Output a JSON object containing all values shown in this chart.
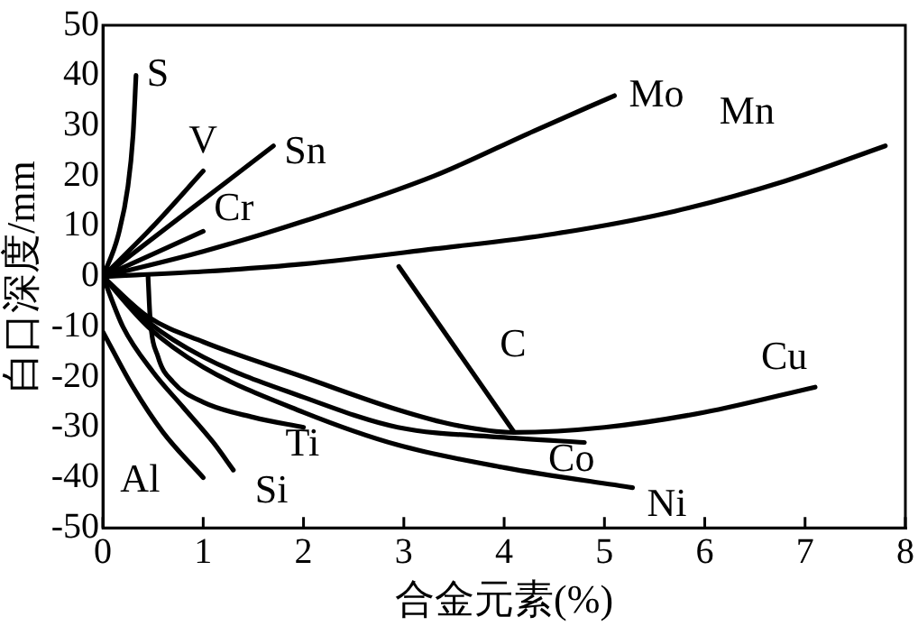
{
  "chart_data": {
    "type": "line",
    "xlabel": "合金元素(%)",
    "ylabel": "白口深度/mm",
    "xlim": [
      0,
      8
    ],
    "xticks": [
      0,
      1,
      2,
      3,
      4,
      5,
      6,
      7,
      8
    ],
    "ylim": [
      -50,
      50
    ],
    "yticks": [
      -50,
      -40,
      -30,
      -20,
      -10,
      0,
      10,
      20,
      30,
      40,
      50
    ],
    "grid": false,
    "legend": false,
    "marker": "none",
    "line_style": "solid",
    "series": [
      {
        "name": "S",
        "color": "#000000",
        "x": [
          0,
          0.15,
          0.25,
          0.3,
          0.33
        ],
        "values": [
          0,
          8,
          18,
          28,
          40
        ]
      },
      {
        "name": "V",
        "color": "#000000",
        "x": [
          0,
          0.5,
          1
        ],
        "values": [
          0,
          10,
          21
        ]
      },
      {
        "name": "Sn",
        "color": "#000000",
        "x": [
          0,
          0.85,
          1.7
        ],
        "values": [
          0,
          13,
          26
        ]
      },
      {
        "name": "Cr",
        "color": "#000000",
        "x": [
          0,
          0.5,
          1
        ],
        "values": [
          0,
          4.5,
          9
        ]
      },
      {
        "name": "Mo",
        "color": "#000000",
        "x": [
          0,
          1,
          2,
          3.3,
          4.3,
          5.1
        ],
        "values": [
          0,
          5,
          11,
          20,
          29,
          36
        ]
      },
      {
        "name": "Mn",
        "color": "#000000",
        "x": [
          0,
          1,
          2,
          3.3,
          4.5,
          5.7,
          6.8,
          7.8
        ],
        "values": [
          0,
          1,
          2.5,
          5.5,
          8.5,
          13,
          19,
          26
        ]
      },
      {
        "name": "C",
        "color": "#000000",
        "x": [
          2.95,
          4.1
        ],
        "values": [
          2,
          -31
        ]
      },
      {
        "name": "Cu",
        "color": "#000000",
        "x": [
          0,
          0.45,
          1,
          2,
          2.94,
          3.5,
          4.1,
          5,
          6,
          7.1
        ],
        "values": [
          0,
          -8,
          -13,
          -20,
          -26.5,
          -29.5,
          -31,
          -30,
          -27,
          -22
        ]
      },
      {
        "name": "Co",
        "color": "#000000",
        "x": [
          0,
          0.45,
          1,
          2,
          2.94,
          4,
          4.8
        ],
        "values": [
          0,
          -9,
          -16,
          -24,
          -30,
          -32,
          -33
        ]
      },
      {
        "name": "Ni",
        "color": "#000000",
        "x": [
          0,
          0.45,
          1,
          2,
          2.94,
          4,
          5.28
        ],
        "values": [
          0,
          -10,
          -18,
          -27,
          -33.5,
          -38,
          -42
        ]
      },
      {
        "name": "Ti",
        "color": "#000000",
        "x": [
          0.45,
          0.47,
          0.55,
          0.7,
          1,
          1.5,
          2
        ],
        "values": [
          0,
          -8,
          -16,
          -21,
          -25,
          -28,
          -30
        ]
      },
      {
        "name": "Si",
        "color": "#000000",
        "x": [
          0,
          0.2,
          0.5,
          0.8,
          1.1,
          1.3
        ],
        "values": [
          0,
          -10,
          -19,
          -26,
          -33,
          -38.5
        ]
      },
      {
        "name": "Al",
        "color": "#000000",
        "x": [
          0,
          0.3,
          0.6,
          1
        ],
        "values": [
          -11,
          -22,
          -31,
          -40
        ]
      }
    ]
  }
}
